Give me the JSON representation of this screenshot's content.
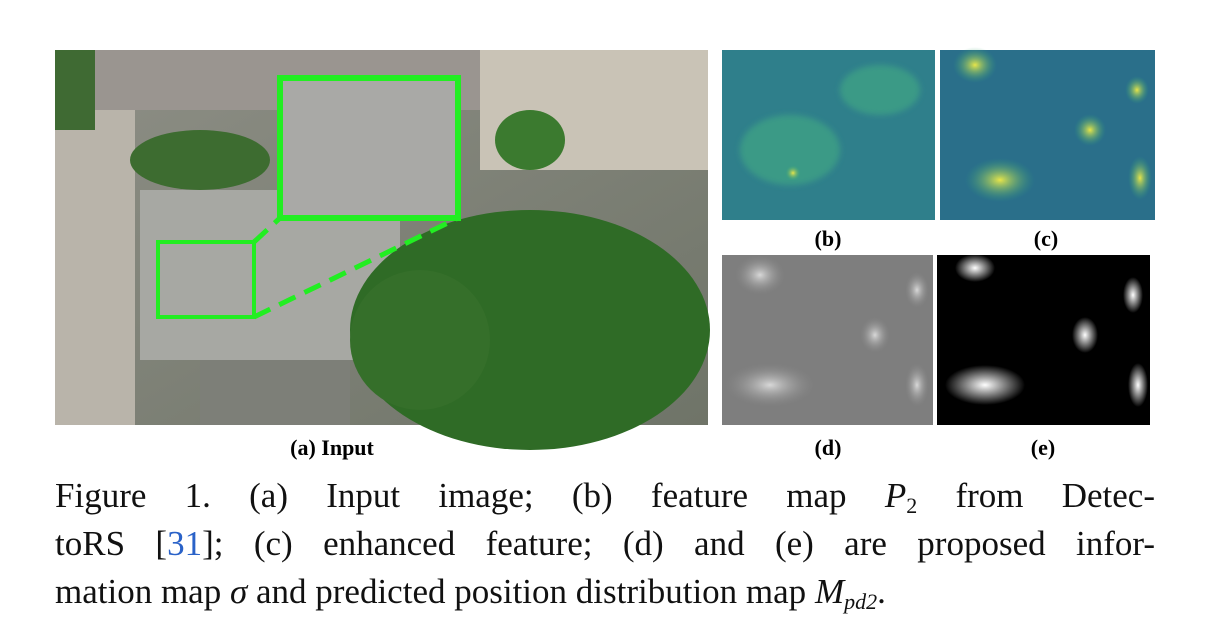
{
  "panels": {
    "a": "(a) Input",
    "b": "(b)",
    "c": "(c)",
    "d": "(d)",
    "e": "(e)"
  },
  "caption": {
    "label": "Figure 1.",
    "line1": {
      "t1": "(a) Input image; (b) feature map",
      "math": "P",
      "sub": "2",
      "t2": "from Detec-"
    },
    "line2": {
      "t1": "toRS [",
      "ref": "31",
      "t2": "]; (c) enhanced feature; (d) and (e) are proposed infor-"
    },
    "line3": {
      "t1": "mation map",
      "math1": "σ",
      "t2": "and predicted position distribution map",
      "math2": "M",
      "sub2": "pd2",
      "t3": "."
    }
  }
}
